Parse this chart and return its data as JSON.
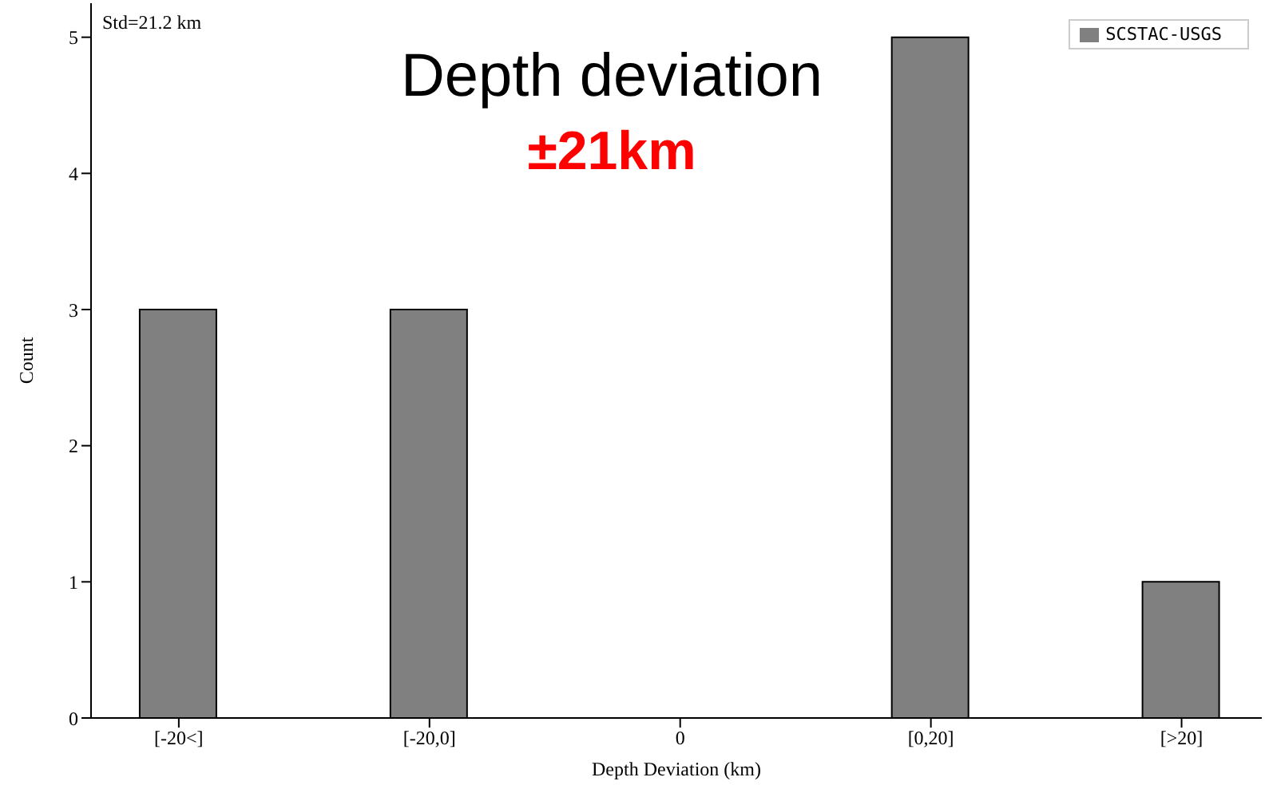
{
  "chart_data": {
    "type": "bar",
    "title": "Depth deviation",
    "subtitle": "±21km",
    "xlabel": "Depth Deviation (km)",
    "ylabel": "Count",
    "annotations": [
      "Std=21.2 km"
    ],
    "categories": [
      "[-20<]",
      "[-20,0]",
      "0",
      "[0,20]",
      "[>20]"
    ],
    "series": [
      {
        "name": "SCSTAC-USGS",
        "color": "#808080",
        "values": [
          3,
          3,
          0,
          5,
          1
        ]
      }
    ],
    "ylim": [
      0,
      5.25
    ],
    "yticks": [
      0,
      1,
      2,
      3,
      4,
      5
    ],
    "legend": "top right"
  }
}
